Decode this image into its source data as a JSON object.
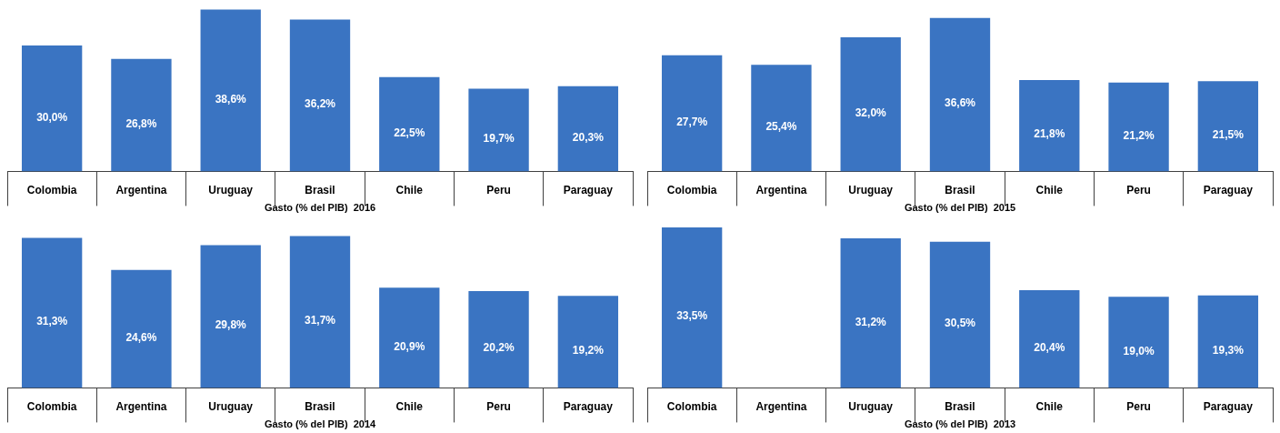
{
  "chart_data": [
    {
      "type": "bar",
      "xlabel": "Gasto (% del PIB)  2016",
      "categories": [
        "Colombia",
        "Argentina",
        "Uruguay",
        "Brasil",
        "Chile",
        "Peru",
        "Paraguay"
      ],
      "values": [
        30.0,
        26.8,
        38.6,
        36.2,
        22.5,
        19.7,
        20.3
      ],
      "color": "#3a74c2",
      "value_labels": [
        "30,0%",
        "26,8%",
        "38,6%",
        "36,2%",
        "22,5%",
        "19,7%",
        "20,3%"
      ],
      "grid": false,
      "legend": false,
      "tick_labels": "x"
    },
    {
      "type": "bar",
      "xlabel": "Gasto (% del PIB)  2015",
      "categories": [
        "Colombia",
        "Argentina",
        "Uruguay",
        "Brasil",
        "Chile",
        "Peru",
        "Paraguay"
      ],
      "values": [
        27.7,
        25.4,
        32.0,
        36.6,
        21.8,
        21.2,
        21.5
      ],
      "color": "#3a74c2",
      "value_labels": [
        "27,7%",
        "25,4%",
        "32,0%",
        "36,6%",
        "21,8%",
        "21,2%",
        "21,5%"
      ],
      "grid": false,
      "legend": false,
      "tick_labels": "x"
    },
    {
      "type": "bar",
      "xlabel": "Gasto (% del PIB)  2014",
      "categories": [
        "Colombia",
        "Argentina",
        "Uruguay",
        "Brasil",
        "Chile",
        "Peru",
        "Paraguay"
      ],
      "values": [
        31.3,
        24.6,
        29.8,
        31.7,
        20.9,
        20.2,
        19.2
      ],
      "color": "#3a74c2",
      "value_labels": [
        "31,3%",
        "24,6%",
        "29,8%",
        "31,7%",
        "20,9%",
        "20,2%",
        "19,2%"
      ],
      "grid": false,
      "legend": false,
      "tick_labels": "x"
    },
    {
      "type": "bar",
      "xlabel": "Gasto (% del PIB)  2013",
      "categories": [
        "Colombia",
        "Argentina",
        "Uruguay",
        "Brasil",
        "Chile",
        "Peru",
        "Paraguay"
      ],
      "values": [
        33.5,
        null,
        31.2,
        30.5,
        20.4,
        19.0,
        19.3
      ],
      "color": "#3a74c2",
      "value_labels": [
        "33,5%",
        null,
        "31,2%",
        "30,5%",
        "20,4%",
        "19,0%",
        "19,3%"
      ],
      "grid": false,
      "legend": false,
      "tick_labels": "x"
    }
  ]
}
